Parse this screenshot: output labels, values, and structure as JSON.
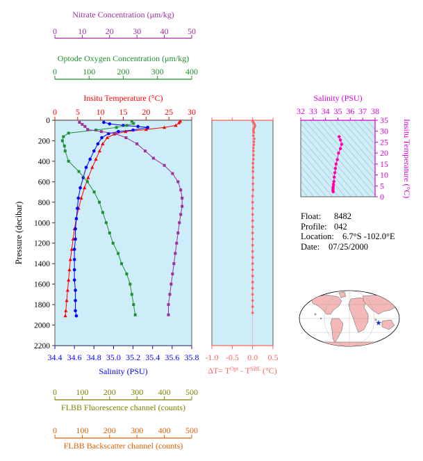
{
  "chart_data": [
    {
      "type": "line",
      "panel": "main-profile",
      "ylabel": "Pressure (decibar)",
      "ylim": [
        2200,
        0
      ],
      "yticks": [
        0,
        200,
        400,
        600,
        800,
        1000,
        1200,
        1400,
        1600,
        1800,
        2000,
        2200
      ],
      "axes": {
        "nitrate": {
          "label": "Nitrate Concentration (μm/kg)",
          "range": [
            0,
            50
          ],
          "ticks": [
            0,
            10,
            20,
            30,
            40,
            50
          ],
          "color": "#9b2f9b"
        },
        "oxygen": {
          "label": "Optode Oxygen Concentration (μm/kg)",
          "range": [
            0,
            400
          ],
          "ticks": [
            0,
            100,
            200,
            300,
            400
          ],
          "color": "#1f8f2f"
        },
        "temperature": {
          "label": "Insitu Temperature (°C)",
          "range": [
            0,
            30
          ],
          "ticks": [
            0,
            5,
            10,
            15,
            20,
            25,
            30
          ],
          "color": "#ff0000"
        },
        "salinity": {
          "label": "Salinity (PSU)",
          "range": [
            34.4,
            35.8
          ],
          "ticks": [
            "34.4",
            "34.6",
            "34.8",
            "35.0",
            "35.2",
            "35.4",
            "35.6",
            "35.8"
          ],
          "color": "#0000ff"
        },
        "fluorescence": {
          "label": "FLBB Fluorescence channel (counts)",
          "range": [
            0,
            500
          ],
          "ticks": [
            0,
            100,
            200,
            300,
            400,
            500
          ],
          "color": "#808000"
        },
        "backscatter": {
          "label": "FLBB Backscatter channel (counts)",
          "range": [
            0,
            500
          ],
          "ticks": [
            0,
            100,
            200,
            300,
            400,
            500
          ],
          "color": "#e06000"
        }
      },
      "series": [
        {
          "axis": "temperature",
          "color": "#ff0000",
          "marker": "triangle",
          "points": [
            [
              27.5,
              10
            ],
            [
              27.2,
              25
            ],
            [
              26.5,
              50
            ],
            [
              24.0,
              70
            ],
            [
              20.0,
              90
            ],
            [
              15.5,
              110
            ],
            [
              13.0,
              135
            ],
            [
              11.5,
              170
            ],
            [
              10.5,
              230
            ],
            [
              9.8,
              300
            ],
            [
              9.0,
              380
            ],
            [
              8.2,
              460
            ],
            [
              7.3,
              560
            ],
            [
              6.5,
              660
            ],
            [
              5.8,
              760
            ],
            [
              5.2,
              860
            ],
            [
              4.7,
              960
            ],
            [
              4.3,
              1060
            ],
            [
              4.0,
              1160
            ],
            [
              3.7,
              1260
            ],
            [
              3.4,
              1360
            ],
            [
              3.2,
              1460
            ],
            [
              3.0,
              1560
            ],
            [
              2.8,
              1660
            ],
            [
              2.6,
              1760
            ],
            [
              2.4,
              1860
            ],
            [
              2.3,
              1910
            ]
          ]
        },
        {
          "axis": "salinity",
          "color": "#0000ff",
          "marker": "circle",
          "points": [
            [
              34.9,
              20
            ],
            [
              34.96,
              35
            ],
            [
              35.1,
              50
            ],
            [
              35.25,
              60
            ],
            [
              35.35,
              70
            ],
            [
              35.2,
              95
            ],
            [
              35.05,
              110
            ],
            [
              34.95,
              130
            ],
            [
              34.88,
              170
            ],
            [
              34.84,
              230
            ],
            [
              34.8,
              300
            ],
            [
              34.76,
              380
            ],
            [
              34.72,
              460
            ],
            [
              34.69,
              560
            ],
            [
              34.66,
              660
            ],
            [
              34.64,
              760
            ],
            [
              34.63,
              860
            ],
            [
              34.62,
              960
            ],
            [
              34.61,
              1060
            ],
            [
              34.61,
              1160
            ],
            [
              34.6,
              1260
            ],
            [
              34.6,
              1360
            ],
            [
              34.6,
              1460
            ],
            [
              34.6,
              1560
            ],
            [
              34.61,
              1660
            ],
            [
              34.61,
              1760
            ],
            [
              34.61,
              1860
            ],
            [
              34.62,
              1910
            ]
          ]
        },
        {
          "axis": "oxygen",
          "color": "#1f8f2f",
          "marker": "square",
          "points": [
            [
              225,
              10
            ],
            [
              230,
              30
            ],
            [
              210,
              50
            ],
            [
              180,
              70
            ],
            [
              120,
              95
            ],
            [
              40,
              125
            ],
            [
              25,
              160
            ],
            [
              22,
              200
            ],
            [
              28,
              250
            ],
            [
              30,
              300
            ],
            [
              40,
              400
            ],
            [
              70,
              500
            ],
            [
              95,
              600
            ],
            [
              115,
              700
            ],
            [
              130,
              800
            ],
            [
              140,
              900
            ],
            [
              150,
              1000
            ],
            [
              160,
              1100
            ],
            [
              170,
              1200
            ],
            [
              185,
              1300
            ],
            [
              195,
              1400
            ],
            [
              210,
              1500
            ],
            [
              220,
              1600
            ],
            [
              225,
              1700
            ],
            [
              230,
              1800
            ],
            [
              235,
              1900
            ]
          ]
        },
        {
          "axis": "nitrate",
          "color": "#9b2f9b",
          "marker": "square",
          "points": [
            [
              9,
              20
            ],
            [
              10,
              40
            ],
            [
              11,
              60
            ],
            [
              12,
              90
            ],
            [
              17,
              110
            ],
            [
              22,
              130
            ],
            [
              26,
              170
            ],
            [
              30,
              230
            ],
            [
              33,
              300
            ],
            [
              36,
              370
            ],
            [
              40,
              440
            ],
            [
              43,
              520
            ],
            [
              45,
              600
            ],
            [
              46,
              680
            ],
            [
              46.5,
              760
            ],
            [
              46.5,
              840
            ],
            [
              46,
              920
            ],
            [
              45.5,
              1000
            ],
            [
              45,
              1100
            ],
            [
              44.5,
              1200
            ],
            [
              44,
              1300
            ],
            [
              43.5,
              1400
            ],
            [
              43,
              1500
            ],
            [
              42.5,
              1600
            ],
            [
              42,
              1700
            ],
            [
              41.5,
              1800
            ],
            [
              41.5,
              1900
            ]
          ]
        }
      ]
    },
    {
      "type": "scatter",
      "panel": "delta-t",
      "xlabel": "ΔT= T^Opt - T^SBE (°C)",
      "xlim": [
        -1.0,
        0.5
      ],
      "xticks": [
        "-1.0",
        "-0.5",
        "0.0",
        "0.5"
      ],
      "ylim": [
        2200,
        0
      ],
      "color": "#ff6060",
      "points": [
        [
          0.0,
          10
        ],
        [
          0.02,
          20
        ],
        [
          0.04,
          35
        ],
        [
          0.06,
          50
        ],
        [
          0.05,
          65
        ],
        [
          0.03,
          80
        ],
        [
          0.02,
          100
        ],
        [
          0.03,
          120
        ],
        [
          0.02,
          150
        ],
        [
          0.04,
          180
        ],
        [
          0.03,
          210
        ],
        [
          0.03,
          240
        ],
        [
          0.02,
          270
        ],
        [
          0.02,
          300
        ],
        [
          0.02,
          340
        ],
        [
          0.02,
          380
        ],
        [
          0.01,
          420
        ],
        [
          0.01,
          460
        ],
        [
          0.01,
          500
        ],
        [
          0.01,
          560
        ],
        [
          0.01,
          620
        ],
        [
          0.01,
          680
        ],
        [
          0.0,
          740
        ],
        [
          0.0,
          800
        ],
        [
          0.0,
          860
        ],
        [
          0.0,
          920
        ],
        [
          0.0,
          980
        ],
        [
          0.0,
          1040
        ],
        [
          0.0,
          1100
        ],
        [
          0.0,
          1160
        ],
        [
          0.0,
          1220
        ],
        [
          0.0,
          1280
        ],
        [
          0.0,
          1340
        ],
        [
          0.0,
          1400
        ],
        [
          0.0,
          1460
        ],
        [
          0.0,
          1520
        ],
        [
          0.0,
          1580
        ],
        [
          0.0,
          1640
        ],
        [
          0.0,
          1700
        ],
        [
          0.0,
          1760
        ],
        [
          0.0,
          1820
        ],
        [
          0.0,
          1880
        ]
      ]
    },
    {
      "type": "scatter",
      "panel": "ts-diagram",
      "xlabel": "Salinity (PSU)",
      "ylabel": "Insitu Temperature (°C)",
      "xlim": [
        32,
        38
      ],
      "ylim": [
        0,
        35
      ],
      "xticks": [
        32,
        33,
        34,
        35,
        36,
        37,
        38
      ],
      "yticks": [
        0,
        5,
        10,
        15,
        20,
        25,
        30,
        35
      ],
      "color": "#ff00aa",
      "points": [
        [
          35.1,
          27.5
        ],
        [
          35.2,
          26
        ],
        [
          35.3,
          24
        ],
        [
          35.2,
          22
        ],
        [
          35.05,
          20
        ],
        [
          34.95,
          17
        ],
        [
          34.85,
          15
        ],
        [
          34.8,
          13
        ],
        [
          34.75,
          11
        ],
        [
          34.7,
          9
        ],
        [
          34.68,
          7
        ],
        [
          34.64,
          5.8
        ],
        [
          34.62,
          4.7
        ],
        [
          34.61,
          4.0
        ],
        [
          34.6,
          3.4
        ],
        [
          34.6,
          3.0
        ],
        [
          34.6,
          2.6
        ],
        [
          34.62,
          2.3
        ]
      ]
    }
  ],
  "float_info": {
    "float_label": "Float:",
    "float_value": "8482",
    "profile_label": "Profile:",
    "profile_value": "042",
    "location_label": "Location:",
    "location_value": "6.7°S  -102.0°E",
    "date_label": "Date:",
    "date_value": "07/25/2000"
  },
  "colors": {
    "panel_bg": "#cdeef8",
    "map_land": "#f4b8b8",
    "map_ocean": "#ffffff",
    "star": "#1a3ad6"
  },
  "icons": {
    "location_marker": "star-icon"
  }
}
